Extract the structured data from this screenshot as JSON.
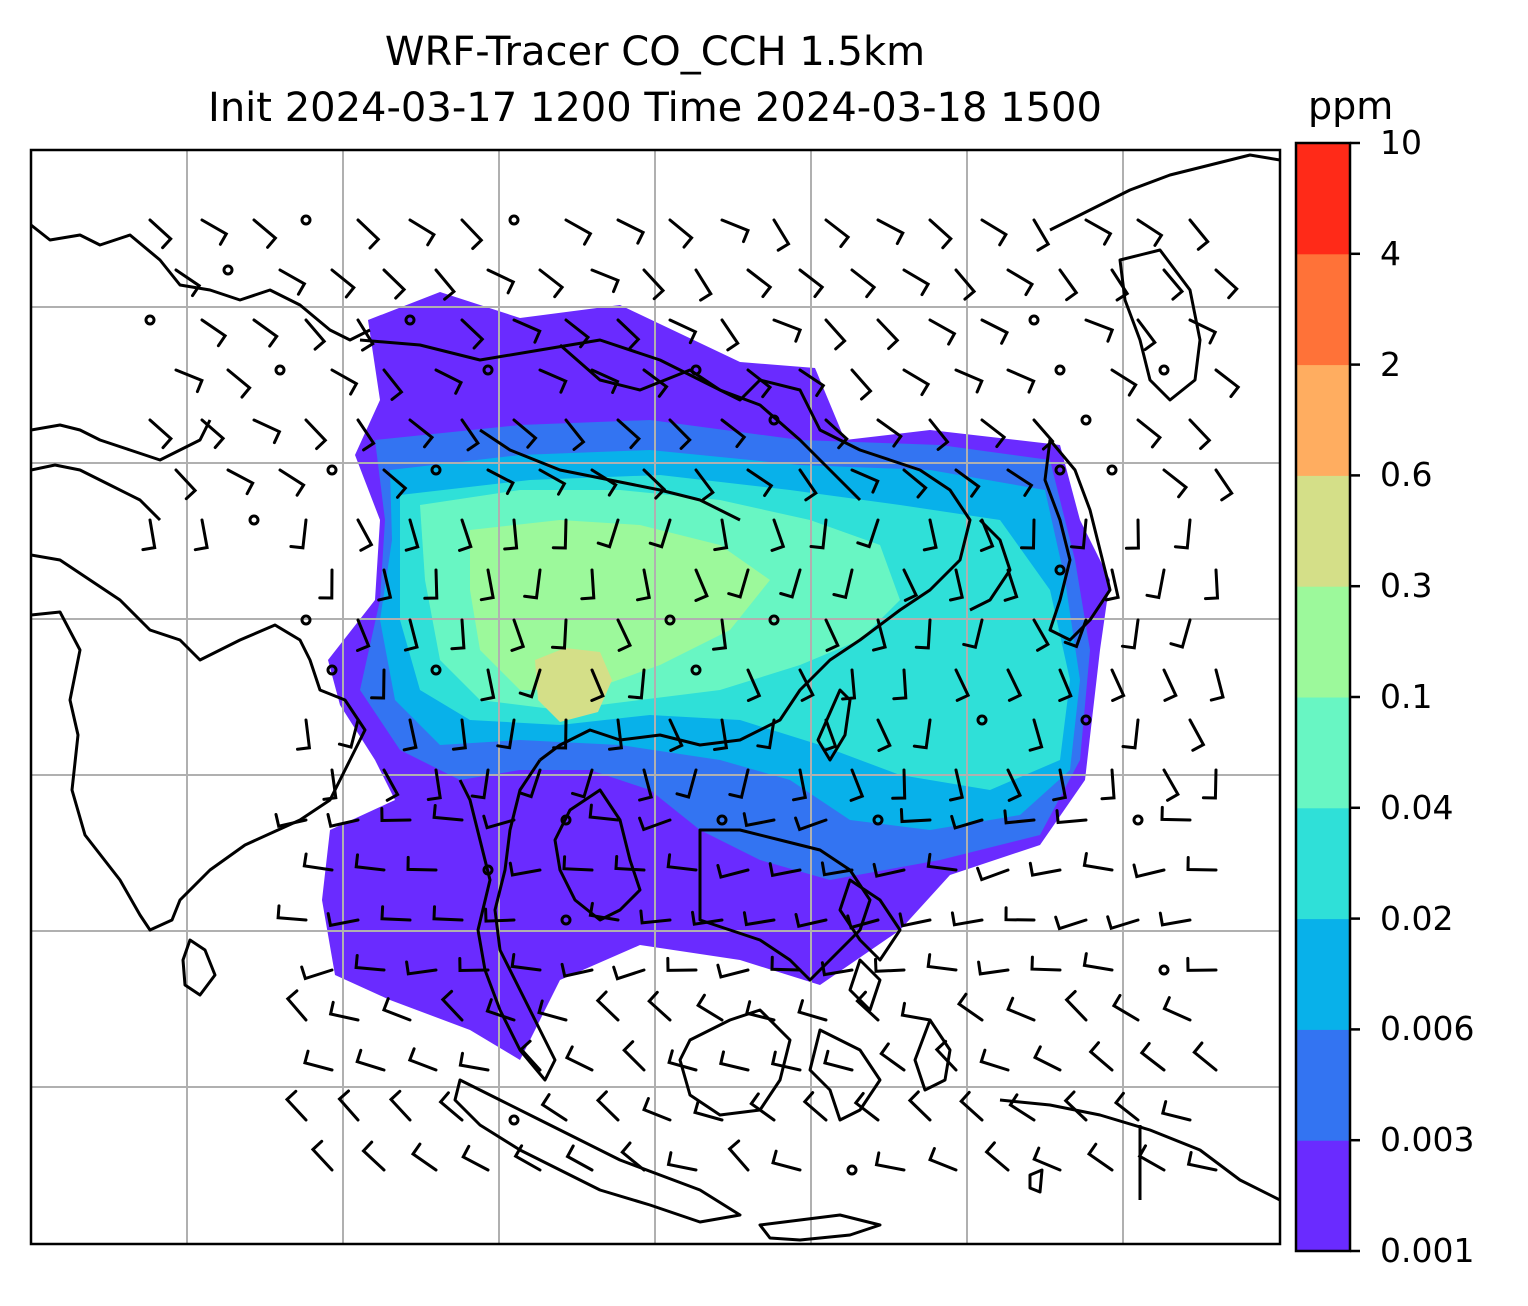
{
  "title": {
    "line1": "WRF-Tracer CO_CCH 1.5km",
    "line2": "Init 2024-03-17 1200 Time 2024-03-18 1500"
  },
  "colorbar": {
    "unit": "ppm",
    "levels": [
      "0.001",
      "0.003",
      "0.006",
      "0.02",
      "0.04",
      "0.1",
      "0.3",
      "0.6",
      "2",
      "4",
      "10"
    ],
    "colors": [
      "#6a2bff",
      "#3374f2",
      "#08b1ea",
      "#2fe0d8",
      "#68f6c3",
      "#9cf99b",
      "#d4df88",
      "#ffad60",
      "#ff7238",
      "#ff2a18"
    ]
  },
  "map": {
    "layers": [
      "coastlines",
      "country-borders",
      "lat-lon-gridlines",
      "co-tracer-filled-contours",
      "wind-barbs"
    ],
    "grid_color": "#b0b0b0",
    "coast_color": "#000000"
  }
}
